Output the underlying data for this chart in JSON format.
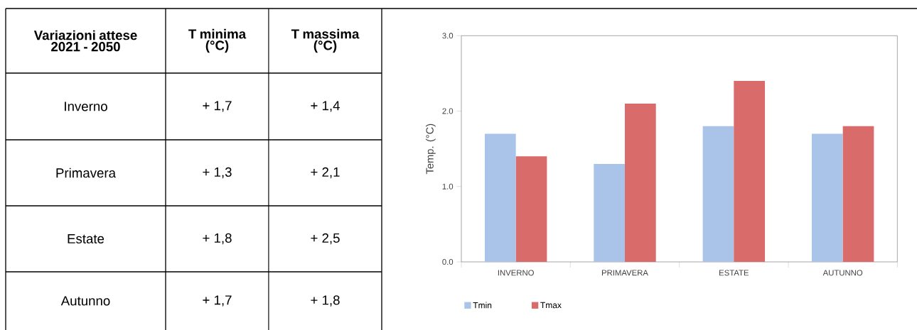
{
  "chart_data": [
    {
      "type": "other",
      "title": "Variazioni attese 2021 - 2050",
      "categories": [
        "Inverno",
        "Primavera",
        "Estate",
        "Autunno"
      ],
      "series": [
        {
          "name": "T minima (°C)",
          "values": [
            1.7,
            1.3,
            1.8,
            1.7
          ],
          "value_labels": [
            "+ 1,7",
            "+ 1,3",
            "+ 1,8",
            "+ 1,7"
          ]
        },
        {
          "name": "T massima (°C)",
          "values": [
            1.4,
            2.1,
            2.5,
            1.8
          ],
          "value_labels": [
            "+ 1,4",
            "+ 2,1",
            "+ 2,5",
            "+ 1,8"
          ]
        }
      ]
    },
    {
      "type": "bar",
      "ylabel": "Temp. (°C)",
      "categories": [
        "INVERNO",
        "PRIMAVERA",
        "ESTATE",
        "AUTUNNO"
      ],
      "series": [
        {
          "name": "Tmin",
          "color": "#a9c4e8",
          "values": [
            1.7,
            1.3,
            1.8,
            1.7
          ]
        },
        {
          "name": "Tmax",
          "color": "#d96b6b",
          "values": [
            1.4,
            2.1,
            2.4,
            1.8
          ]
        }
      ],
      "ylim": [
        0,
        3
      ],
      "yticks": [
        {
          "value": 0,
          "label": "0.0"
        },
        {
          "value": 1,
          "label": "1.0"
        },
        {
          "value": 2,
          "label": "2.0"
        },
        {
          "value": 3,
          "label": "3.0"
        }
      ],
      "grid": false,
      "legend": "bottom left"
    }
  ]
}
